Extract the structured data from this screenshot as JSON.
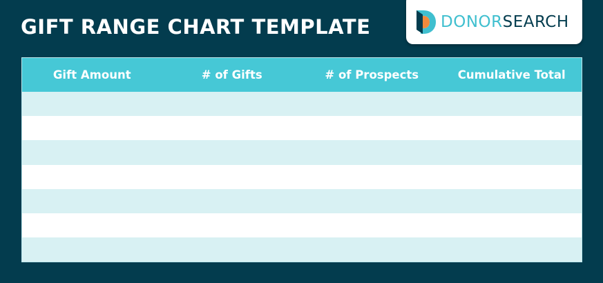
{
  "header": {
    "title": "GIFT RANGE CHART TEMPLATE"
  },
  "logo": {
    "parts": [
      "DONOR",
      "SEARCH"
    ]
  },
  "table": {
    "columns": [
      "Gift Amount",
      "# of Gifts",
      "# of Prospects",
      "Cumulative Total"
    ]
  }
}
